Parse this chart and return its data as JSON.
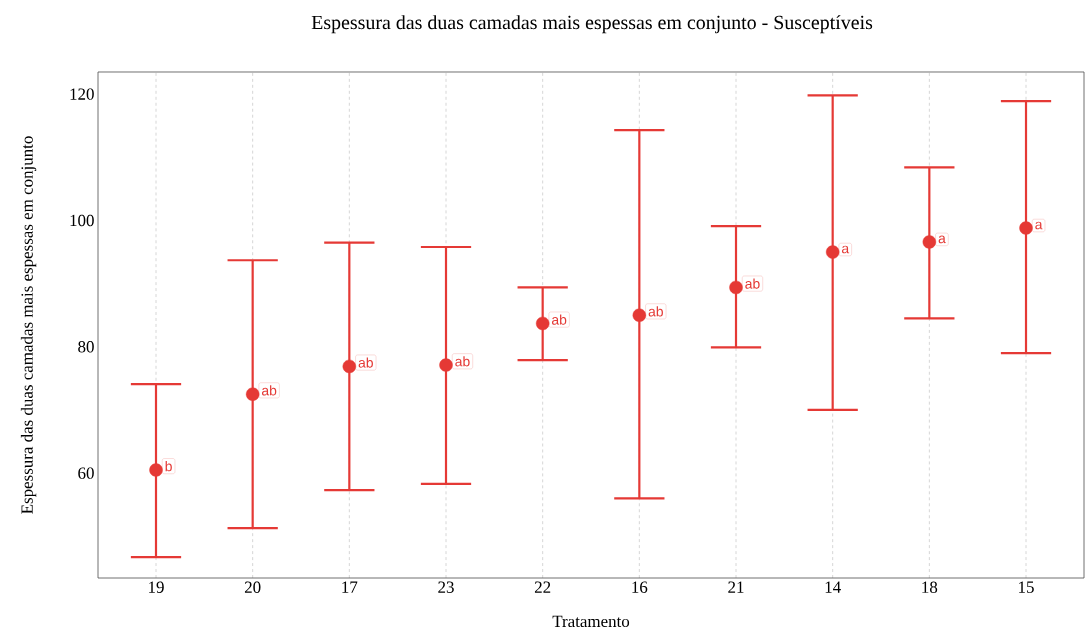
{
  "chart_data": {
    "type": "scatter",
    "title": "Espessura das duas camadas mais espessas em conjunto - Susceptíveis",
    "xlabel": "Tratamento",
    "ylabel": "Espessura das duas camadas mais espessas em conjunto",
    "categories": [
      "19",
      "20",
      "17",
      "23",
      "22",
      "16",
      "21",
      "14",
      "18",
      "15"
    ],
    "values": [
      60.5,
      72.5,
      76.9,
      77.1,
      83.7,
      85.0,
      89.4,
      95.0,
      96.6,
      98.8
    ],
    "errors": [
      [
        46.7,
        74.1
      ],
      [
        51.3,
        93.7
      ],
      [
        57.3,
        96.5
      ],
      [
        58.3,
        95.8
      ],
      [
        77.9,
        89.4
      ],
      [
        56.0,
        114.3
      ],
      [
        79.9,
        99.1
      ],
      [
        70.0,
        119.8
      ],
      [
        84.5,
        108.4
      ],
      [
        79.0,
        118.9
      ]
    ],
    "value_labels": [
      "b",
      "ab",
      "ab",
      "ab",
      "ab",
      "ab",
      "ab",
      "a",
      "a",
      "a"
    ],
    "color": "#e53935",
    "marker": "circle",
    "ylim": [
      43.4,
      123.5
    ],
    "yticks": [
      60,
      80,
      100,
      120
    ],
    "grid": "x"
  }
}
